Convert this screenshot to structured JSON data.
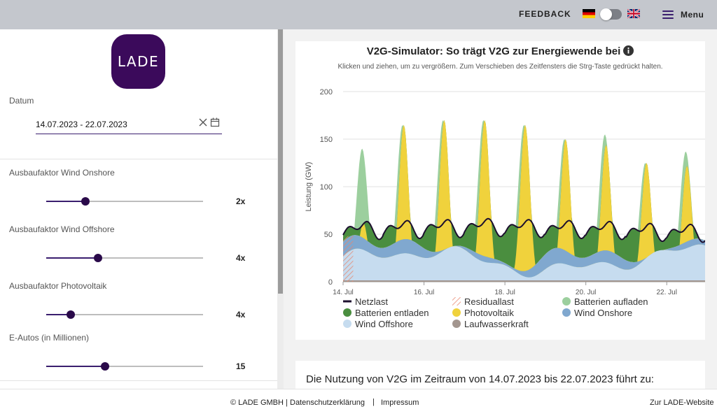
{
  "header": {
    "feedback": "FEEDBACK",
    "menu": "Menu",
    "lang_flags": [
      "flag-de-icon",
      "flag-uk-icon"
    ]
  },
  "sidebar": {
    "logo_text": "LADE",
    "date_label": "Datum",
    "date_value": "14.07.2023 - 22.07.2023",
    "sliders": [
      {
        "label": "Ausbaufaktor Wind Onshore",
        "value": "2x",
        "fraction": 0.25
      },
      {
        "label": "Ausbaufaktor Wind Offshore",
        "value": "4x",
        "fraction": 0.33
      },
      {
        "label": "Ausbaufaktor Photovoltaik",
        "value": "4x",
        "fraction": 0.155
      },
      {
        "label": "E-Autos (in Millionen)",
        "value": "15",
        "fraction": 0.375
      }
    ]
  },
  "chart": {
    "title": "V2G-Simulator: So trägt V2G zur Energiewende bei",
    "subtitle": "Klicken und ziehen, um zu vergrößern. Zum Verschieben des Zeitfensters die Strg-Taste gedrückt halten.",
    "info_text": "Die Nutzung von V2G im Zeitraum von 14.07.2023 bis 22.07.2023 führt zu:"
  },
  "chart_data": {
    "type": "area",
    "title": "V2G-Simulator: So trägt V2G zur Energiewende bei",
    "xlabel": "",
    "ylabel": "Leistung (GW)",
    "ylim": [
      0,
      200
    ],
    "yticks": [
      "0",
      "50",
      "100",
      "150",
      "200"
    ],
    "xticks": [
      {
        "day": 0,
        "label": "14. Jul"
      },
      {
        "day": 2,
        "label": "16. Jul"
      },
      {
        "day": 4,
        "label": "18. Jul"
      },
      {
        "day": 6,
        "label": "20. Jul"
      },
      {
        "day": 8,
        "label": "22. Jul"
      }
    ],
    "x_days": 9,
    "pv_peaks": [
      62,
      165,
      170,
      170,
      165,
      150,
      144,
      125,
      122
    ],
    "charge_peaks": [
      140,
      130,
      60,
      48,
      78,
      130,
      155,
      102,
      137
    ],
    "netzlast_mean": [
      55,
      56,
      57,
      58,
      57,
      56,
      55,
      53,
      52
    ],
    "colors": {
      "Netzlast": "#1c0f2e",
      "Residuallast": "#e8866e",
      "Batterien aufladen": "#9ccf9e",
      "Batterien entladen": "#4a8e3f",
      "Photovoltaik": "#f0d23c",
      "Wind Onshore": "#80a8cf",
      "Wind Offshore": "#c6dcef",
      "Laufwasserkraft": "#a3968f"
    },
    "legend": [
      {
        "name": "Netzlast",
        "marker": "line"
      },
      {
        "name": "Residuallast",
        "marker": "hatch"
      },
      {
        "name": "Batterien aufladen",
        "marker": "dot"
      },
      {
        "name": "Batterien entladen",
        "marker": "dot"
      },
      {
        "name": "Photovoltaik",
        "marker": "dot"
      },
      {
        "name": "Wind Onshore",
        "marker": "dot"
      },
      {
        "name": "Wind Offshore",
        "marker": "dot"
      },
      {
        "name": "Laufwasserkraft",
        "marker": "dot"
      }
    ]
  },
  "footer": {
    "copyright": "© LADE GMBH |",
    "privacy": "Datenschutzerklärung",
    "separator": "|",
    "imprint": "Impressum",
    "website": "Zur LADE-Website"
  }
}
